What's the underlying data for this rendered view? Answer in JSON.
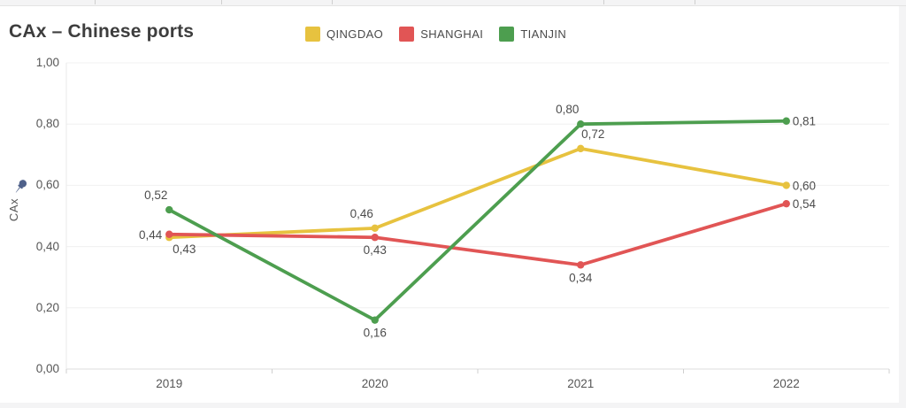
{
  "page": {
    "title": "CAx – Chinese ports"
  },
  "chart_data": {
    "type": "line",
    "title": "CAx – Chinese ports",
    "xlabel": "",
    "ylabel": "CAx",
    "ylim": [
      0,
      1
    ],
    "ytick_values": [
      1.0,
      0.8,
      0.6,
      0.4,
      0.2,
      0.0
    ],
    "ytick_labels": [
      "1,00",
      "0,80",
      "0,60",
      "0,40",
      "0,20",
      "0,00"
    ],
    "categories": [
      "2019",
      "2020",
      "2021",
      "2022"
    ],
    "grid": "horizontal",
    "legend_position": "top",
    "decimal_separator": ",",
    "series": [
      {
        "name": "QINGDAO",
        "color": "#e7c23f",
        "values": [
          0.43,
          0.46,
          0.72,
          0.6
        ],
        "labels": [
          "0,43",
          "0,46",
          "0,72",
          "0,60"
        ],
        "label_placements": [
          "below-right",
          "above-left",
          "above-right",
          "right"
        ]
      },
      {
        "name": "SHANGHAI",
        "color": "#e15555",
        "values": [
          0.44,
          0.43,
          0.34,
          0.54
        ],
        "labels": [
          "0,44",
          "0,43",
          "0,34",
          "0,54"
        ],
        "label_placements": [
          "left",
          "below",
          "below",
          "right"
        ]
      },
      {
        "name": "TIANJIN",
        "color": "#4d9e4f",
        "values": [
          0.52,
          0.16,
          0.8,
          0.81
        ],
        "labels": [
          "0,52",
          "0,16",
          "0,80",
          "0,81"
        ],
        "label_placements": [
          "above-left",
          "below",
          "above-left",
          "right"
        ]
      }
    ],
    "icons": {
      "pin_icon_color": "#4f618a"
    },
    "style": {
      "grid_color": "#f0f0f0",
      "axis_line_color": "#dcdcdc",
      "tick_color": "#cfcfcf",
      "label_color": "#4c4c4c",
      "axis_text_color": "#565656"
    }
  }
}
